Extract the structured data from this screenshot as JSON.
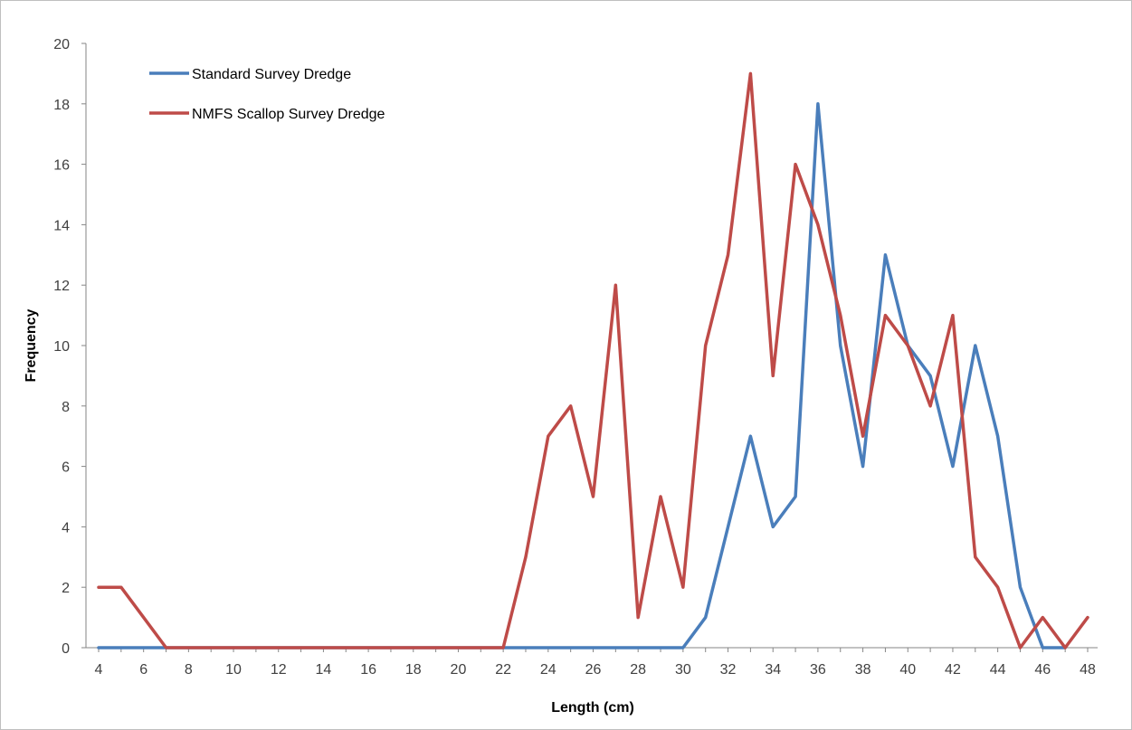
{
  "chart_data": {
    "type": "line",
    "title": "",
    "xlabel": "Length (cm)",
    "ylabel": "Frequency",
    "x": [
      4,
      5,
      6,
      7,
      8,
      9,
      10,
      11,
      12,
      13,
      14,
      15,
      16,
      17,
      18,
      19,
      20,
      21,
      22,
      23,
      24,
      25,
      26,
      27,
      28,
      29,
      30,
      31,
      32,
      33,
      34,
      35,
      36,
      37,
      38,
      39,
      40,
      41,
      42,
      43,
      44,
      45,
      46,
      47,
      48
    ],
    "xticks": [
      4,
      6,
      8,
      10,
      12,
      14,
      16,
      18,
      20,
      22,
      24,
      26,
      28,
      30,
      32,
      34,
      36,
      38,
      40,
      42,
      44,
      46,
      48
    ],
    "xlim": [
      4,
      48
    ],
    "ylim": [
      0,
      20
    ],
    "yticks": [
      0,
      2,
      4,
      6,
      8,
      10,
      12,
      14,
      16,
      18,
      20
    ],
    "grid": false,
    "legend": "top-left",
    "series": [
      {
        "name": "Standard Survey Dredge",
        "color": "#4a7ebb",
        "values": [
          0,
          0,
          0,
          0,
          0,
          0,
          0,
          0,
          0,
          0,
          0,
          0,
          0,
          0,
          0,
          0,
          0,
          0,
          0,
          0,
          0,
          0,
          0,
          0,
          0,
          0,
          0,
          1,
          4,
          7,
          4,
          5,
          18,
          10,
          6,
          13,
          10,
          9,
          6,
          10,
          7,
          2,
          0,
          0,
          null
        ]
      },
      {
        "name": "NMFS Scallop Survey Dredge",
        "color": "#be4b48",
        "values": [
          2,
          2,
          1,
          0,
          0,
          0,
          0,
          0,
          0,
          0,
          0,
          0,
          0,
          0,
          0,
          0,
          0,
          0,
          0,
          3,
          7,
          8,
          5,
          12,
          1,
          5,
          2,
          10,
          13,
          19,
          9,
          16,
          14,
          11,
          7,
          11,
          10,
          8,
          11,
          3,
          2,
          0,
          1,
          0,
          1
        ]
      }
    ]
  }
}
